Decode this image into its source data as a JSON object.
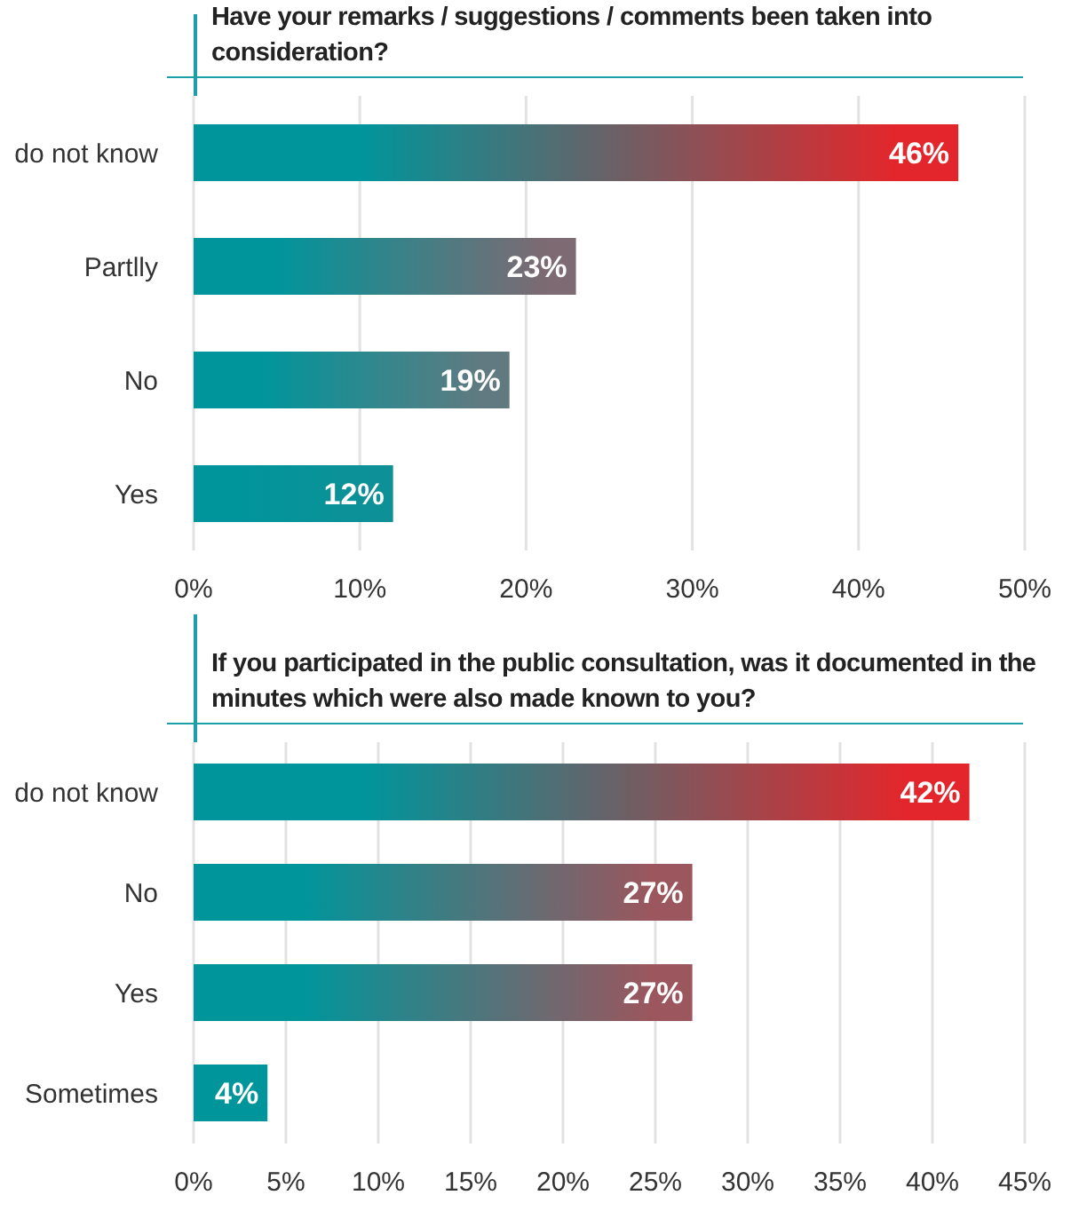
{
  "chart_data": [
    {
      "type": "bar",
      "orientation": "horizontal",
      "title": "Have your remarks / suggestions / comments been taken into consideration?",
      "categories": [
        "do not know",
        "Partlly",
        "No",
        "Yes"
      ],
      "series": [
        {
          "color": "#00959b",
          "colors": [
            "#e3262b",
            "#7d6a72",
            "#617a80",
            "#0e9097"
          ],
          "values": [
            46,
            23,
            19,
            12
          ]
        }
      ],
      "xlim": [
        0,
        50
      ],
      "xticks": [
        {
          "value": 0,
          "label": "0%"
        },
        {
          "value": 10,
          "label": "10%"
        },
        {
          "value": 20,
          "label": "20%"
        },
        {
          "value": 30,
          "label": "30%"
        },
        {
          "value": 40,
          "label": "40%"
        },
        {
          "value": 50,
          "label": "50%"
        }
      ],
      "grid": "x",
      "legend": false,
      "value_labels": [
        "46%",
        "23%",
        "19%",
        "12%"
      ]
    },
    {
      "type": "bar",
      "orientation": "horizontal",
      "title": "If you participated in the public consultation, was it documented in the minutes which were also made known to you?",
      "categories": [
        "do not know",
        "No",
        "Yes",
        "Sometimes"
      ],
      "series": [
        {
          "color": "#00959b",
          "colors": [
            "#e3262b",
            "#9c565d",
            "#9c565d",
            "#00959b"
          ],
          "values": [
            42,
            27,
            27,
            4
          ]
        }
      ],
      "xlim": [
        0,
        45
      ],
      "xticks": [
        {
          "value": 0,
          "label": "0%"
        },
        {
          "value": 5,
          "label": "5%"
        },
        {
          "value": 10,
          "label": "10%"
        },
        {
          "value": 15,
          "label": "15%"
        },
        {
          "value": 20,
          "label": "20%"
        },
        {
          "value": 25,
          "label": "25%"
        },
        {
          "value": 30,
          "label": "30%"
        },
        {
          "value": 35,
          "label": "35%"
        },
        {
          "value": 40,
          "label": "40%"
        },
        {
          "value": 45,
          "label": "45%"
        }
      ],
      "grid": "x",
      "legend": false,
      "value_labels": [
        "42%",
        "27%",
        "27%",
        "4%"
      ]
    }
  ]
}
